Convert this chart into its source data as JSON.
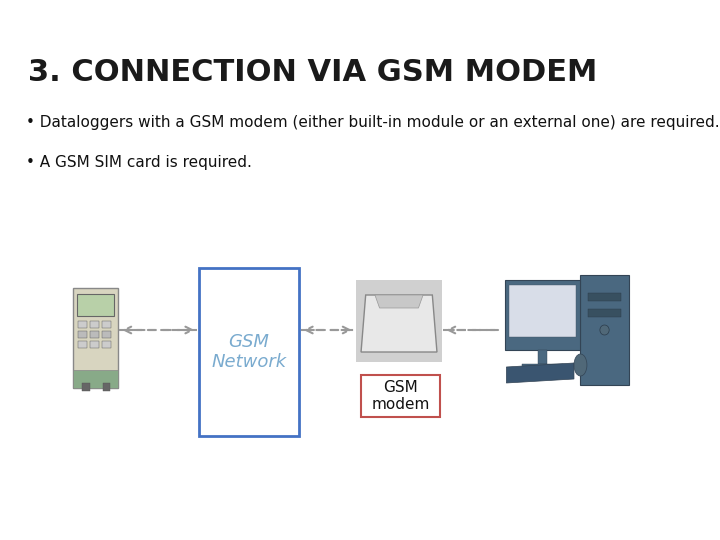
{
  "title": "3. CONNECTION VIA GSM MODEM",
  "bullet1": "• Dataloggers with a GSM modem (either built-in module or an external one) are required.",
  "bullet2": "• A GSM SIM card is required.",
  "gsm_network_label": "GSM\nNetwork",
  "gsm_modem_label": "GSM\nmodem",
  "background_color": "#ffffff",
  "title_color": "#1a1a1a",
  "text_color": "#111111",
  "gsm_box_color": "#4472c4",
  "modem_box_color": "#c0504d",
  "arrow_color": "#999999",
  "title_fontsize": 22,
  "body_fontsize": 11,
  "gsm_label_color": "#7aabcf",
  "modem_label_fontsize": 11,
  "diagram_arrow_lw": 1.5
}
